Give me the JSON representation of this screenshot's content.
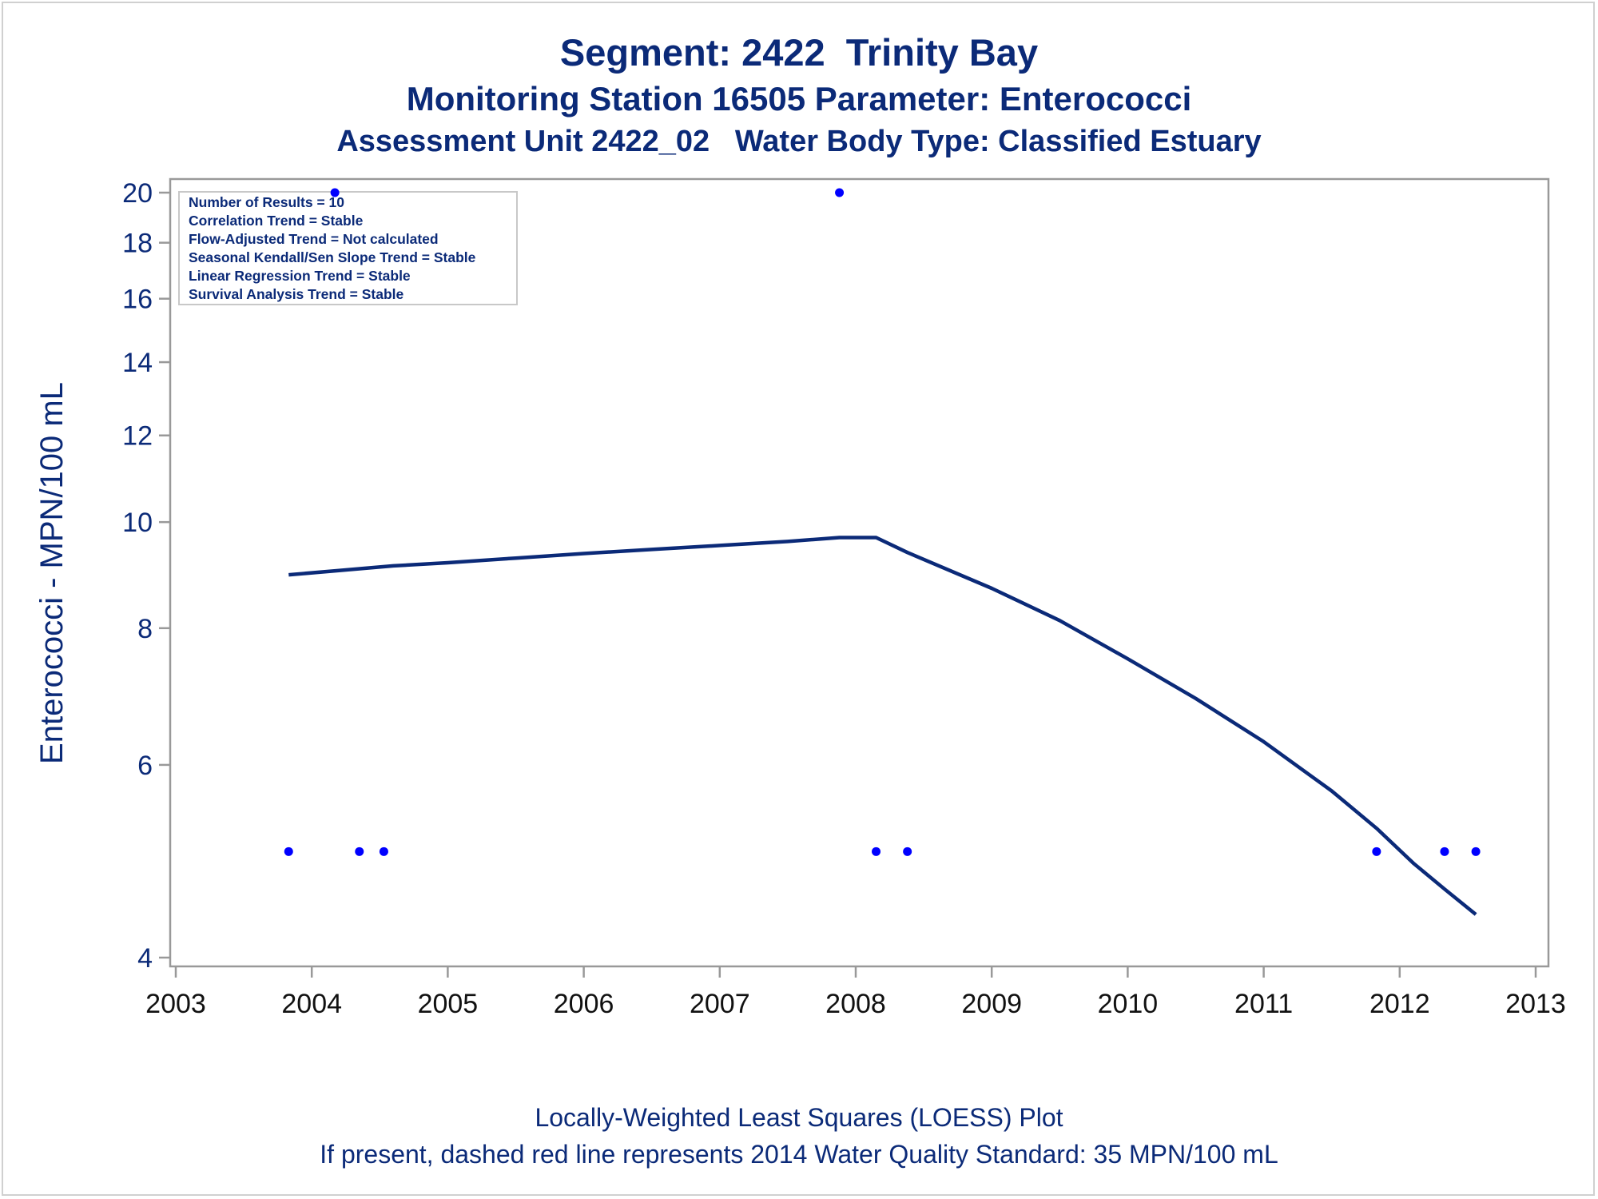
{
  "chart_data": {
    "type": "scatter",
    "title": "Segment: 2422  Trinity Bay",
    "subtitle": "Monitoring Station 16505 Parameter: Enterococci",
    "subtitle2": "Assessment Unit 2422_02   Water Body Type: Classified Estuary",
    "xlabel": "",
    "ylabel": "Enterococci - MPN/100 mL",
    "xlim": [
      2003,
      2013
    ],
    "ylim": [
      4,
      20.5
    ],
    "yscale": "log",
    "x_ticks": [
      "2003",
      "2004",
      "2005",
      "2006",
      "2007",
      "2008",
      "2009",
      "2010",
      "2011",
      "2012",
      "2013"
    ],
    "y_ticks": [
      "4",
      "6",
      "8",
      "10",
      "12",
      "14",
      "16",
      "18",
      "20"
    ],
    "grid": false,
    "stats_box": {
      "placement": "top-left",
      "lines": [
        "Number of Results = 10",
        "Correlation Trend = Stable",
        "Flow-Adjusted Trend = Not calculated",
        "Seasonal Kendall/Sen Slope Trend = Stable",
        "Linear Regression Trend = Stable",
        "Survival Analysis Trend = Stable"
      ]
    },
    "points": [
      {
        "x": 2003.83,
        "y": 5
      },
      {
        "x": 2004.17,
        "y": 20
      },
      {
        "x": 2004.35,
        "y": 5
      },
      {
        "x": 2004.53,
        "y": 5
      },
      {
        "x": 2007.88,
        "y": 20
      },
      {
        "x": 2008.15,
        "y": 5
      },
      {
        "x": 2008.38,
        "y": 5
      },
      {
        "x": 2011.83,
        "y": 5
      },
      {
        "x": 2012.33,
        "y": 5
      },
      {
        "x": 2012.56,
        "y": 5
      }
    ],
    "loess_curve": [
      {
        "x": 2003.83,
        "y": 8.95
      },
      {
        "x": 2004.2,
        "y": 9.03
      },
      {
        "x": 2004.6,
        "y": 9.12
      },
      {
        "x": 2005.0,
        "y": 9.18
      },
      {
        "x": 2005.5,
        "y": 9.27
      },
      {
        "x": 2006.0,
        "y": 9.36
      },
      {
        "x": 2006.5,
        "y": 9.44
      },
      {
        "x": 2007.0,
        "y": 9.52
      },
      {
        "x": 2007.5,
        "y": 9.6
      },
      {
        "x": 2007.88,
        "y": 9.68
      },
      {
        "x": 2008.15,
        "y": 9.68
      },
      {
        "x": 2008.38,
        "y": 9.38
      },
      {
        "x": 2009.0,
        "y": 8.7
      },
      {
        "x": 2009.5,
        "y": 8.13
      },
      {
        "x": 2010.0,
        "y": 7.5
      },
      {
        "x": 2010.5,
        "y": 6.9
      },
      {
        "x": 2011.0,
        "y": 6.3
      },
      {
        "x": 2011.5,
        "y": 5.68
      },
      {
        "x": 2011.83,
        "y": 5.25
      },
      {
        "x": 2012.1,
        "y": 4.88
      },
      {
        "x": 2012.33,
        "y": 4.62
      },
      {
        "x": 2012.56,
        "y": 4.38
      }
    ],
    "colors": {
      "points": "#0000ff",
      "curve": "#0b2a78",
      "text": "#0b2a78",
      "axis": "#999999"
    },
    "footnotes": [
      "Locally-Weighted Least Squares (LOESS) Plot",
      "If present, dashed red line represents 2014 Water Quality Standard: 35 MPN/100 mL"
    ]
  }
}
